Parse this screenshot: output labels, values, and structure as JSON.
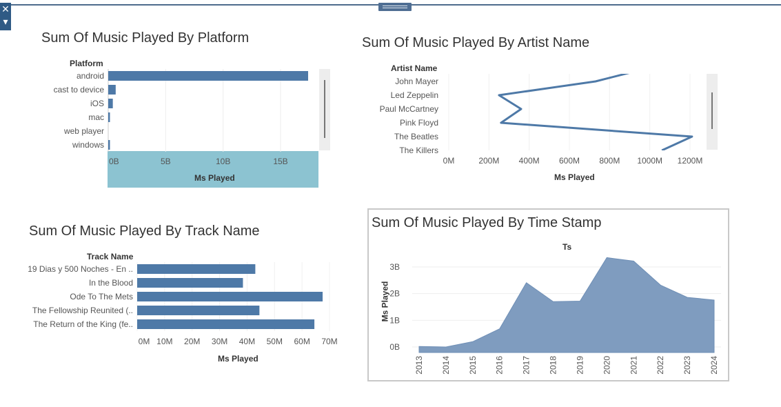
{
  "ui": {
    "close_glyph": "✕",
    "menu_glyph": "▾"
  },
  "charts": {
    "platform": {
      "title": "Sum Of Music Played By Platform",
      "row_header": "Platform",
      "x_title": "Ms Played",
      "ticks": [
        "0B",
        "5B",
        "10B",
        "15B"
      ]
    },
    "artist": {
      "title": "Sum Of Music Played By Artist Name",
      "row_header": "Artist Name",
      "x_title": "Ms Played",
      "ticks": [
        "0M",
        "200M",
        "400M",
        "600M",
        "800M",
        "1000M",
        "1200M"
      ]
    },
    "track": {
      "title": "Sum Of Music Played By Track Name",
      "row_header": "Track Name",
      "x_title": "Ms Played",
      "ticks": [
        "0M",
        "10M",
        "20M",
        "30M",
        "40M",
        "50M",
        "60M",
        "70M"
      ]
    },
    "time": {
      "title": "Sum Of Music Played By Time Stamp",
      "col_header": "Ts",
      "y_title": "Ms Played",
      "yticks": [
        "0B",
        "1B",
        "2B",
        "3B"
      ]
    }
  },
  "chart_data": [
    {
      "type": "bar",
      "orientation": "horizontal",
      "title": "Sum Of Music Played By Platform",
      "categories": [
        "android",
        "cast to device",
        "iOS",
        "mac",
        "web player",
        "windows"
      ],
      "values": [
        17400000000,
        650000000,
        400000000,
        130000000,
        0,
        120000000
      ],
      "xlabel": "Ms Played",
      "ylabel": "Platform",
      "xlim": [
        0,
        18000000000
      ],
      "color": "#4e79a7"
    },
    {
      "type": "line",
      "orientation": "horizontal",
      "title": "Sum Of Music Played By Artist Name",
      "categories": [
        "John Mayer",
        "Led Zeppelin",
        "Paul McCartney",
        "Pink Floyd",
        "The Beatles",
        "The Killers"
      ],
      "values": [
        730000000,
        250000000,
        360000000,
        260000000,
        1210000000,
        1060000000
      ],
      "xlabel": "Ms Played",
      "ylabel": "Artist Name",
      "xlim": [
        0,
        1300000000
      ],
      "color": "#4e79a7"
    },
    {
      "type": "bar",
      "orientation": "horizontal",
      "title": "Sum Of Music Played By Track Name",
      "categories": [
        "19 Dias y 500 Noches - En ..",
        "In the Blood",
        "Ode To The Mets",
        "The Fellowship Reunited (..",
        "The Return of the King (fe.."
      ],
      "values": [
        43000000,
        38500000,
        67500000,
        44500000,
        64500000
      ],
      "xlabel": "Ms Played",
      "ylabel": "Track Name",
      "xlim": [
        0,
        70000000
      ],
      "color": "#4e79a7"
    },
    {
      "type": "area",
      "title": "Sum Of Music Played By Time Stamp",
      "x": [
        "2013",
        "2014",
        "2015",
        "2016",
        "2017",
        "2018",
        "2019",
        "2020",
        "2021",
        "2022",
        "2023",
        "2024"
      ],
      "values": [
        20000000,
        0,
        200000000,
        680000000,
        2410000000,
        1700000000,
        1720000000,
        3350000000,
        3220000000,
        2320000000,
        1860000000,
        1760000000
      ],
      "xlabel": "Ts",
      "ylabel": "Ms Played",
      "ylim": [
        -200000000,
        3400000000
      ],
      "color": "#7f9cbf"
    }
  ]
}
